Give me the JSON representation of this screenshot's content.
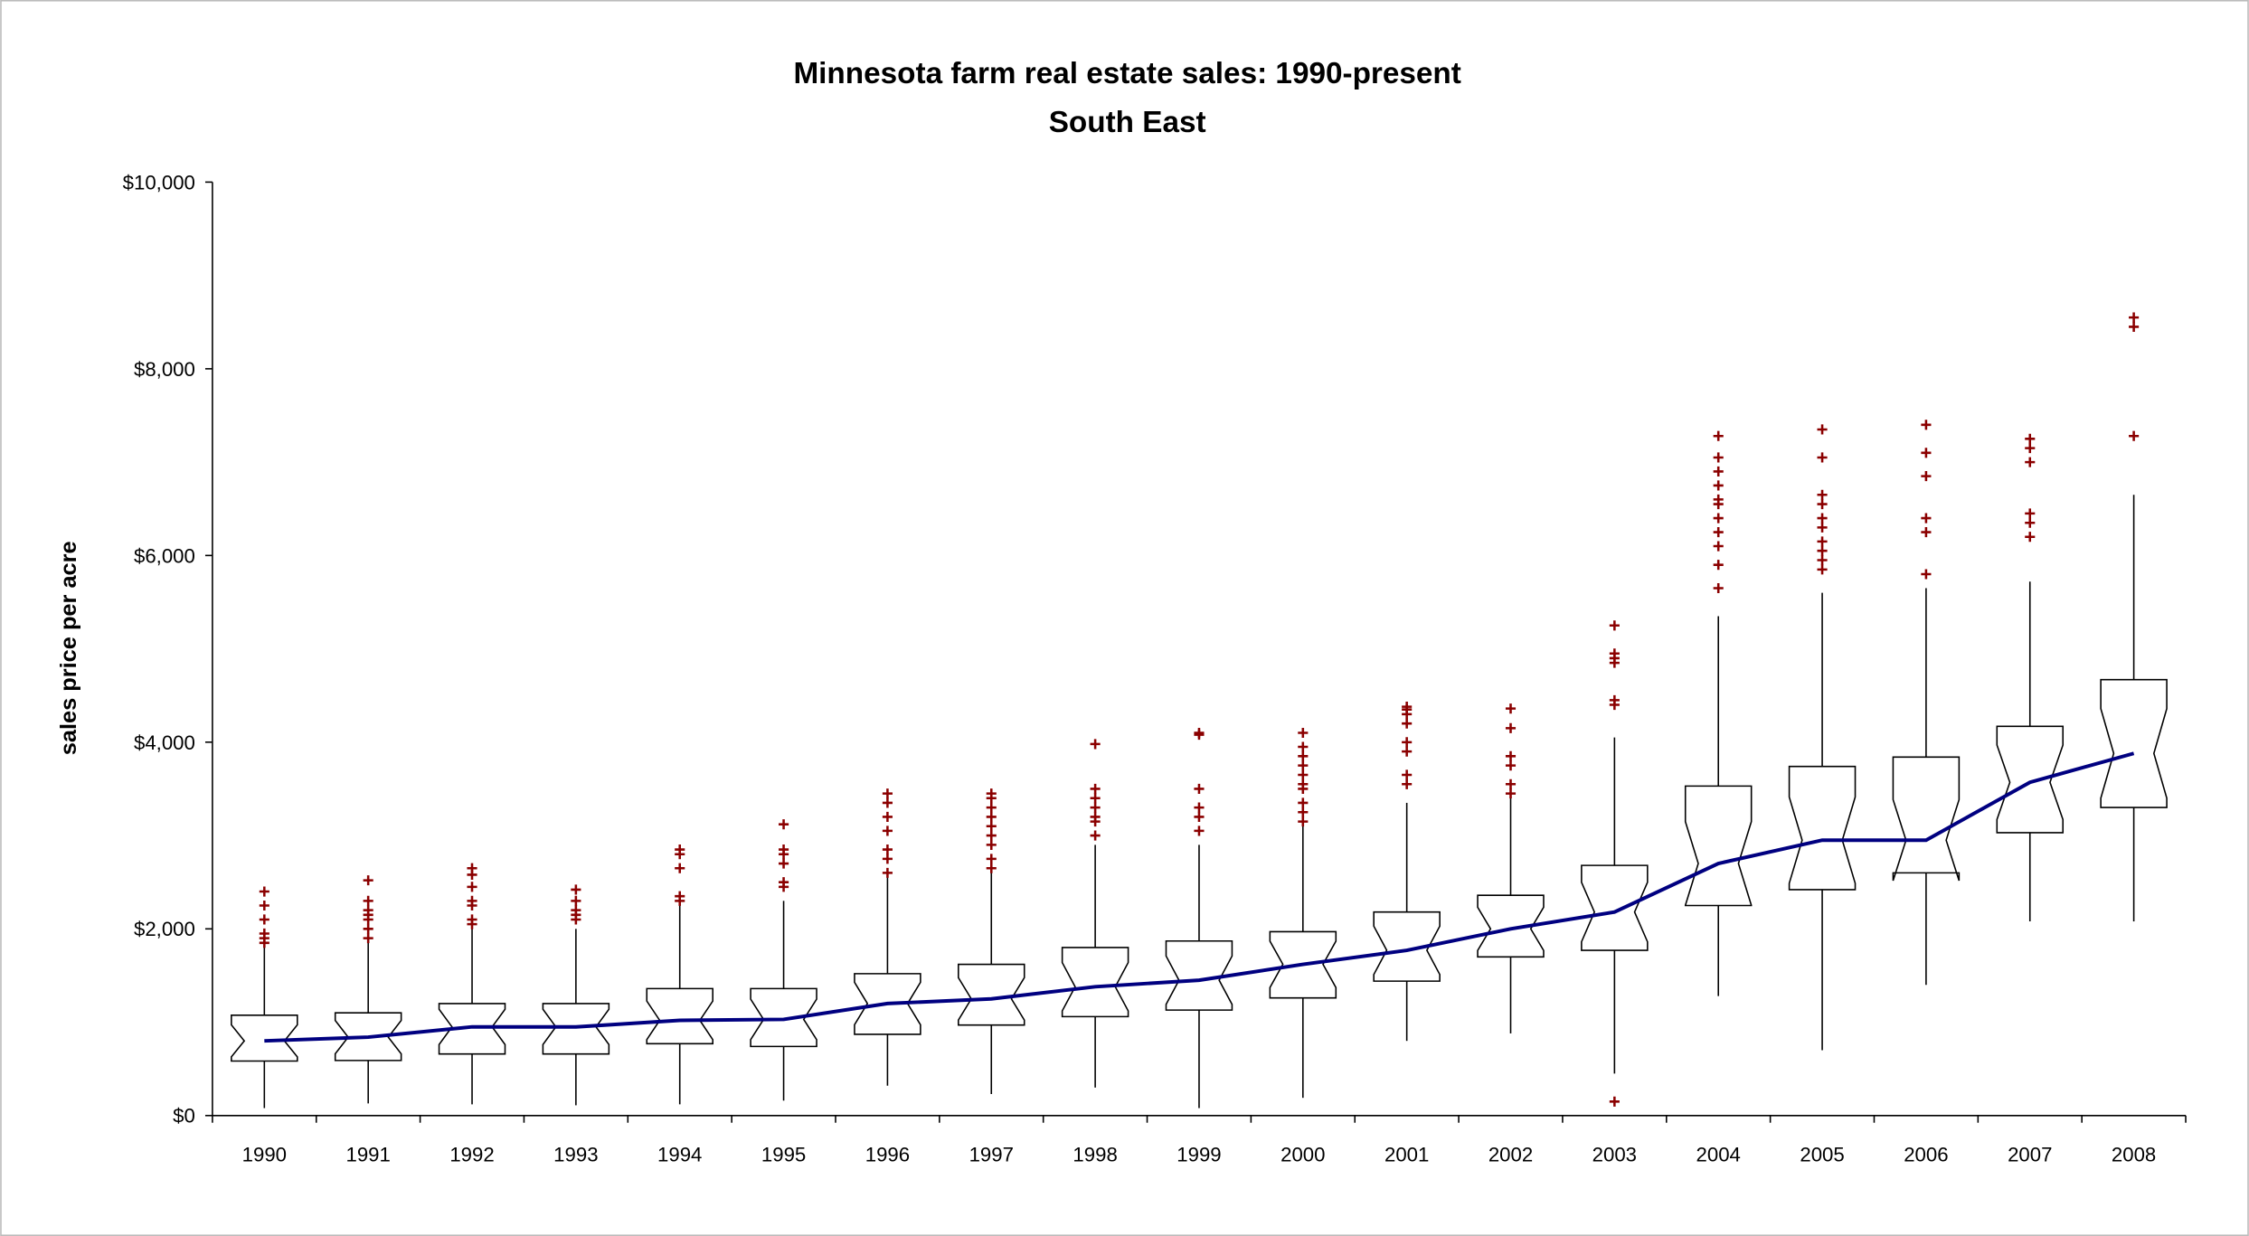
{
  "chart_data": {
    "type": "box",
    "title": "Minnesota farm real estate sales: 1990-present",
    "subtitle": "South East",
    "y_label": "sales price per acre",
    "categories": [
      "1990",
      "1991",
      "1992",
      "1993",
      "1994",
      "1995",
      "1996",
      "1997",
      "1998",
      "1999",
      "2000",
      "2001",
      "2002",
      "2003",
      "2004",
      "2005",
      "2006",
      "2007",
      "2008"
    ],
    "boxes": [
      {
        "whislo": 80,
        "q1": 584,
        "med": 800,
        "q3": 1075,
        "whishi": 1810,
        "fliers": [
          1850,
          1900,
          1950,
          2100,
          2250,
          2400
        ]
      },
      {
        "whislo": 130,
        "q1": 590,
        "med": 840,
        "q3": 1100,
        "whishi": 1850,
        "fliers": [
          1900,
          2000,
          2100,
          2150,
          2200,
          2300,
          2520
        ]
      },
      {
        "whislo": 120,
        "q1": 660,
        "med": 950,
        "q3": 1200,
        "whishi": 2000,
        "fliers": [
          2050,
          2100,
          2250,
          2300,
          2450,
          2580,
          2650
        ]
      },
      {
        "whislo": 110,
        "q1": 660,
        "med": 950,
        "q3": 1200,
        "whishi": 2000,
        "fliers": [
          2100,
          2150,
          2200,
          2300,
          2420
        ]
      },
      {
        "whislo": 120,
        "q1": 770,
        "med": 1020,
        "q3": 1360,
        "whishi": 2250,
        "fliers": [
          2300,
          2350,
          2650,
          2800,
          2850
        ]
      },
      {
        "whislo": 160,
        "q1": 740,
        "med": 1030,
        "q3": 1360,
        "whishi": 2300,
        "fliers": [
          2450,
          2500,
          2700,
          2800,
          2850,
          3120
        ]
      },
      {
        "whislo": 320,
        "q1": 870,
        "med": 1200,
        "q3": 1520,
        "whishi": 2550,
        "fliers": [
          2600,
          2750,
          2850,
          3050,
          3200,
          3350,
          3450
        ]
      },
      {
        "whislo": 230,
        "q1": 970,
        "med": 1250,
        "q3": 1620,
        "whishi": 2600,
        "fliers": [
          2650,
          2750,
          2900,
          3000,
          3100,
          3200,
          3300,
          3400,
          3450
        ]
      },
      {
        "whislo": 300,
        "q1": 1060,
        "med": 1380,
        "q3": 1800,
        "whishi": 2900,
        "fliers": [
          3000,
          3150,
          3200,
          3300,
          3400,
          3500,
          3980
        ]
      },
      {
        "whislo": 80,
        "q1": 1130,
        "med": 1450,
        "q3": 1870,
        "whishi": 2900,
        "fliers": [
          3050,
          3200,
          3300,
          3500,
          4080,
          4100
        ]
      },
      {
        "whislo": 190,
        "q1": 1260,
        "med": 1620,
        "q3": 1970,
        "whishi": 3100,
        "fliers": [
          3150,
          3250,
          3350,
          3500,
          3550,
          3650,
          3750,
          3850,
          3950,
          4100
        ]
      },
      {
        "whislo": 800,
        "q1": 1440,
        "med": 1770,
        "q3": 2180,
        "whishi": 3350,
        "fliers": [
          3550,
          3650,
          3900,
          4000,
          4200,
          4300,
          4350,
          4380
        ]
      },
      {
        "whislo": 880,
        "q1": 1700,
        "med": 2000,
        "q3": 2360,
        "whishi": 3400,
        "fliers": [
          3450,
          3550,
          3750,
          3850,
          4150,
          4360
        ]
      },
      {
        "whislo": 450,
        "q1": 1770,
        "med": 2180,
        "q3": 2680,
        "whishi": 4050,
        "fliers": [
          150,
          4400,
          4450,
          4850,
          4900,
          4950,
          5250
        ]
      },
      {
        "whislo": 1280,
        "q1": 2250,
        "med": 2700,
        "q3": 3530,
        "whishi": 5350,
        "fliers": [
          5650,
          5900,
          6100,
          6250,
          6400,
          6550,
          6600,
          6750,
          6900,
          7050,
          7280
        ]
      },
      {
        "whislo": 700,
        "q1": 2420,
        "med": 2950,
        "q3": 3740,
        "whishi": 5600,
        "fliers": [
          5850,
          5950,
          6050,
          6150,
          6300,
          6400,
          6550,
          6650,
          7050,
          7350
        ]
      },
      {
        "whislo": 1400,
        "q1": 2600,
        "med": 2950,
        "q3": 3840,
        "whishi": 5650,
        "fliers": [
          5800,
          6250,
          6400,
          6850,
          7100,
          7400
        ]
      },
      {
        "whislo": 2080,
        "q1": 3030,
        "med": 3570,
        "q3": 4170,
        "whishi": 5720,
        "fliers": [
          6200,
          6350,
          6450,
          7000,
          7150,
          7250
        ]
      },
      {
        "whislo": 2080,
        "q1": 3300,
        "med": 3880,
        "q3": 4670,
        "whishi": 6650,
        "fliers": [
          7280,
          8450,
          8550
        ]
      }
    ],
    "ylim": [
      0,
      10000
    ],
    "yticks": [
      {
        "value": 0,
        "label": "$0"
      },
      {
        "value": 2000,
        "label": "$2,000"
      },
      {
        "value": 4000,
        "label": "$4,000"
      },
      {
        "value": 6000,
        "label": "$6,000"
      },
      {
        "value": 8000,
        "label": "$8,000"
      },
      {
        "value": 10000,
        "label": "$10,000"
      }
    ],
    "box_color": "#000000",
    "median_line_color": "#000080",
    "outlier_color": "#8b0000"
  }
}
